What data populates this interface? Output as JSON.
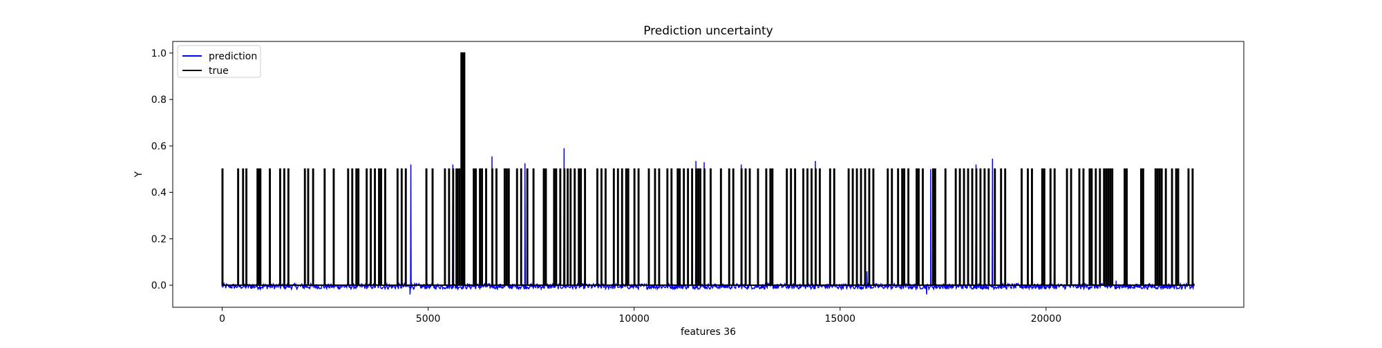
{
  "chart_data": {
    "type": "line",
    "title": "Prediction uncertainty",
    "xlabel": "features 36",
    "ylabel": "Y",
    "xlim": [
      -1200,
      24800
    ],
    "ylim": [
      -0.095,
      1.05
    ],
    "x_ticks": [
      0,
      5000,
      10000,
      15000,
      20000
    ],
    "x_tick_labels": [
      "0",
      "5000",
      "10000",
      "15000",
      "20000"
    ],
    "y_ticks": [
      0.0,
      0.2,
      0.4,
      0.6,
      0.8,
      1.0
    ],
    "y_tick_labels": [
      "0.0",
      "0.2",
      "0.4",
      "0.6",
      "0.8",
      "1.0"
    ],
    "grid": false,
    "legend_position": "upper left",
    "x_range": [
      0,
      23600
    ],
    "series": [
      {
        "name": "prediction",
        "color": "#0000ff",
        "baseline": -0.005,
        "noise_amplitude": 0.012,
        "spikes": [
          [
            0,
            0.5
          ],
          [
            4580,
            0.52
          ],
          [
            4560,
            -0.04
          ],
          [
            5600,
            0.52
          ],
          [
            5850,
            1.0
          ],
          [
            6550,
            0.555
          ],
          [
            7350,
            0.525
          ],
          [
            8300,
            0.59
          ],
          [
            8800,
            0.03
          ],
          [
            11500,
            0.535
          ],
          [
            11700,
            0.53
          ],
          [
            12600,
            0.52
          ],
          [
            14400,
            0.535
          ],
          [
            15650,
            0.06
          ],
          [
            17100,
            -0.04
          ],
          [
            17200,
            0.5
          ],
          [
            18300,
            0.52
          ],
          [
            18700,
            0.545
          ],
          [
            20200,
            0.065
          ],
          [
            21700,
            0.02
          ]
        ]
      },
      {
        "name": "true",
        "color": "#000000",
        "baseline": 0.0,
        "spike_value": 0.5,
        "spikes_x": [
          0,
          380,
          500,
          580,
          850,
          880,
          920,
          1150,
          1400,
          1500,
          1600,
          2000,
          2080,
          2200,
          2480,
          2700,
          3050,
          3150,
          3250,
          3300,
          3500,
          3600,
          3700,
          3800,
          3850,
          3950,
          4250,
          4350,
          4450,
          4950,
          5100,
          5400,
          5500,
          5600,
          5680,
          5700,
          5750,
          6100,
          6150,
          6250,
          6300,
          6400,
          6550,
          6650,
          6850,
          6900,
          6950,
          7150,
          7250,
          7400,
          7550,
          7800,
          7850,
          8050,
          8100,
          8200,
          8300,
          8380,
          8450,
          8550,
          8650,
          8700,
          8800,
          9100,
          9200,
          9300,
          9500,
          9600,
          9700,
          9800,
          9850,
          10000,
          10100,
          10350,
          10500,
          10600,
          10800,
          10900,
          11050,
          11100,
          11200,
          11300,
          11400,
          11500,
          11550,
          11600,
          11700,
          11850,
          12100,
          12300,
          12400,
          12600,
          12700,
          12800,
          13000,
          13200,
          13300,
          13350,
          13700,
          13800,
          13900,
          14100,
          14200,
          14300,
          14400,
          14500,
          14750,
          14850,
          15200,
          15300,
          15400,
          15500,
          15600,
          15700,
          15800,
          16150,
          16250,
          16400,
          16500,
          16550,
          16650,
          16850,
          16900,
          17000,
          17250,
          17300,
          17550,
          17800,
          17900,
          18000,
          18100,
          18200,
          18300,
          18400,
          18500,
          18600,
          18750,
          18900,
          19000,
          19400,
          19550,
          19650,
          19900,
          19950,
          20100,
          20200,
          20500,
          20600,
          20800,
          20900,
          21050,
          21100,
          21200,
          21300,
          21400,
          21450,
          21500,
          21550,
          21600,
          21900,
          21950,
          22300,
          22350,
          22650,
          22700,
          22750,
          22800,
          22900,
          23050,
          23150,
          23200,
          23450,
          23550
        ]
      }
    ],
    "true_tall_spike": {
      "x_start": 5800,
      "x_end": 5880,
      "value": 1.0
    }
  }
}
